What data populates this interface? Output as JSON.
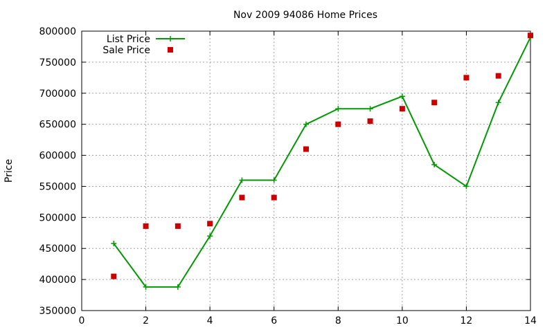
{
  "chart_data": {
    "type": "line",
    "title": "Nov 2009 94086 Home Prices",
    "xlabel": "",
    "ylabel": "Price",
    "xlim": [
      0,
      14
    ],
    "ylim": [
      350000,
      800000
    ],
    "x_ticks": [
      "0",
      "2",
      "4",
      "6",
      "8",
      "10",
      "12",
      "14"
    ],
    "y_ticks": [
      "350000",
      "400000",
      "450000",
      "500000",
      "550000",
      "600000",
      "650000",
      "700000",
      "750000",
      "800000"
    ],
    "grid": true,
    "legend_position": "top-left",
    "series": [
      {
        "name": "List Price",
        "style": "line-plus",
        "color": "#009900",
        "x": [
          1,
          2,
          3,
          4,
          5,
          6,
          7,
          8,
          9,
          10,
          11,
          12,
          13,
          14
        ],
        "y": [
          458000,
          388000,
          388000,
          470000,
          560000,
          560000,
          650000,
          675000,
          675000,
          695000,
          585000,
          550000,
          685000,
          790000
        ]
      },
      {
        "name": "Sale Price",
        "style": "square-marker",
        "color": "#cc0000",
        "x": [
          1,
          2,
          3,
          4,
          5,
          6,
          7,
          8,
          9,
          10,
          11,
          12,
          13,
          14
        ],
        "y": [
          405000,
          486000,
          486000,
          490000,
          532000,
          532000,
          610000,
          650000,
          655000,
          675000,
          685000,
          725000,
          728000,
          793000
        ]
      }
    ]
  }
}
